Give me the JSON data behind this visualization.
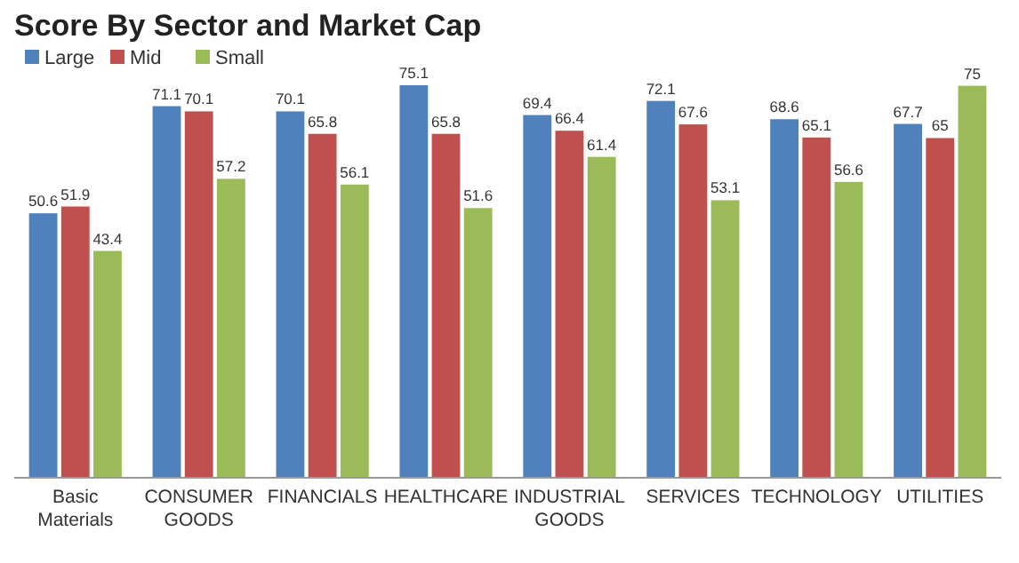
{
  "chart_data": {
    "type": "bar",
    "title": "Score By Sector and Market Cap",
    "categories": [
      "Basic Materials",
      "CONSUMER GOODS",
      "FINANCIALS",
      "HEALTHCARE",
      "INDUSTRIAL GOODS",
      "SERVICES",
      "TECHNOLOGY",
      "UTILITIES"
    ],
    "series": [
      {
        "name": "Large",
        "color": "#4f81bd",
        "values": [
          50.6,
          71.1,
          70.1,
          75.1,
          69.4,
          72.1,
          68.6,
          67.7
        ]
      },
      {
        "name": "Mid",
        "color": "#c0504d",
        "values": [
          51.9,
          70.1,
          65.8,
          65.8,
          66.4,
          67.6,
          65.1,
          65
        ]
      },
      {
        "name": "Small",
        "color": "#9bbb59",
        "values": [
          43.4,
          57.2,
          56.1,
          51.6,
          61.4,
          53.1,
          56.6,
          75
        ]
      }
    ],
    "tick_labels": "x",
    "data_labels": true,
    "legend": "top left"
  }
}
